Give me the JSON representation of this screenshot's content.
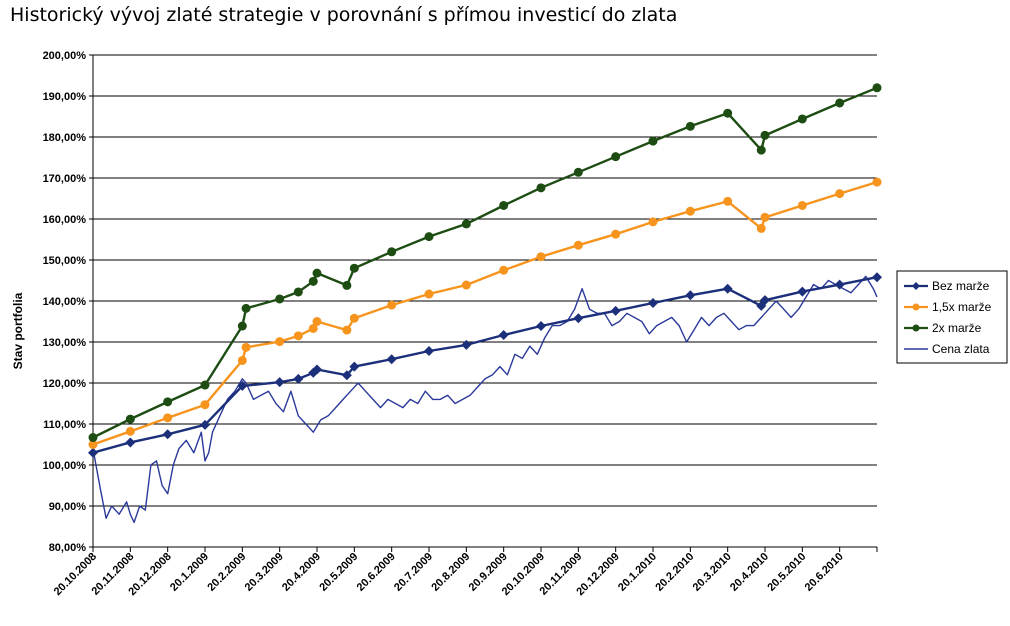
{
  "chart_data": {
    "type": "line",
    "title": "Historický vývoj zlaté strategie v porovnání s přímou investicí do zlata",
    "ylabel": "Stav portfolia",
    "xlabel": "",
    "ylim": [
      80,
      200
    ],
    "yticks": [
      "80,00%",
      "90,00%",
      "100,00%",
      "110,00%",
      "120,00%",
      "130,00%",
      "140,00%",
      "150,00%",
      "160,00%",
      "170,00%",
      "180,00%",
      "190,00%",
      "200,00%"
    ],
    "xticks": [
      "20.10.2008",
      "20.11.2008",
      "20.12.2008",
      "20.1.2009",
      "20.2.2009",
      "20.3.2009",
      "20.4.2009",
      "20.5.2009",
      "20.6.2009",
      "20.7.2009",
      "20.8.2009",
      "20.9.2009",
      "20.10.2009",
      "20.11.2009",
      "20.12.2009",
      "20.1.2010",
      "20.2.2010",
      "20.3.2010",
      "20.4.2010",
      "20.5.2010",
      "20.6.2010"
    ],
    "x_range": [
      0,
      21
    ],
    "grid": true,
    "legend_position": "right",
    "series": [
      {
        "name": "Bez marže",
        "color": "#1c2f7a",
        "marker": "diamond",
        "x": [
          0,
          1,
          2,
          3,
          4,
          5,
          5.5,
          5.9,
          6,
          6.8,
          7,
          8,
          9,
          10,
          11,
          12,
          13,
          14,
          15,
          16,
          17,
          17.9,
          18,
          19,
          20,
          21
        ],
        "y": [
          103,
          105.5,
          107.5,
          109.8,
          119.3,
          120.2,
          121,
          122.5,
          123.3,
          121.9,
          124,
          125.8,
          127.8,
          129.3,
          131.7,
          133.9,
          135.8,
          137.6,
          139.5,
          141.4,
          143,
          138.8,
          140.2,
          142.3,
          144,
          145.8
        ]
      },
      {
        "name": "1,5x marže",
        "color": "#f7941d",
        "marker": "circle",
        "x": [
          0,
          1,
          2,
          3,
          4,
          4.1,
          5,
          5.5,
          5.9,
          6,
          6.8,
          7,
          8,
          9,
          10,
          11,
          12,
          13,
          14,
          15,
          16,
          17,
          17.9,
          18,
          19,
          20,
          21
        ],
        "y": [
          105,
          108.2,
          111.5,
          114.7,
          125.5,
          128.7,
          130.1,
          131.5,
          133.3,
          135,
          132.9,
          135.8,
          139,
          141.7,
          143.9,
          147.5,
          150.8,
          153.6,
          156.3,
          159.3,
          161.9,
          164.3,
          157.7,
          160.4,
          163.3,
          166.2,
          169
        ]
      },
      {
        "name": "2x marže",
        "color": "#1d4d13",
        "marker": "circle",
        "x": [
          0,
          1,
          2,
          3,
          4,
          4.1,
          5,
          5.5,
          5.9,
          6,
          6.8,
          7,
          8,
          9,
          10,
          11,
          12,
          13,
          14,
          15,
          16,
          17,
          17.9,
          18,
          19,
          20,
          21
        ],
        "y": [
          106.7,
          111.2,
          115.4,
          119.5,
          133.9,
          138.2,
          140.5,
          142.2,
          144.8,
          146.8,
          143.8,
          148,
          152,
          155.7,
          158.8,
          163.3,
          167.6,
          171.4,
          175.2,
          179,
          182.6,
          185.8,
          176.8,
          180.4,
          184.4,
          188.3,
          192
        ]
      },
      {
        "name": "Cena zlata",
        "color": "#2b3a9a",
        "marker": "none",
        "x": [
          0,
          0.1,
          0.2,
          0.35,
          0.5,
          0.7,
          0.9,
          1.0,
          1.1,
          1.25,
          1.4,
          1.55,
          1.7,
          1.85,
          2.0,
          2.15,
          2.3,
          2.5,
          2.7,
          2.9,
          3.0,
          3.1,
          3.2,
          3.4,
          3.6,
          3.8,
          4.0,
          4.1,
          4.3,
          4.5,
          4.7,
          4.9,
          5.1,
          5.3,
          5.5,
          5.7,
          5.9,
          6.1,
          6.3,
          6.5,
          6.7,
          6.9,
          7.1,
          7.3,
          7.5,
          7.7,
          7.9,
          8.1,
          8.3,
          8.5,
          8.7,
          8.9,
          9.1,
          9.3,
          9.5,
          9.7,
          9.9,
          10.1,
          10.3,
          10.5,
          10.7,
          10.9,
          11.1,
          11.3,
          11.5,
          11.7,
          11.9,
          12.1,
          12.3,
          12.5,
          12.7,
          12.9,
          13.1,
          13.3,
          13.5,
          13.7,
          13.9,
          14.1,
          14.3,
          14.5,
          14.7,
          14.9,
          15.1,
          15.3,
          15.5,
          15.7,
          15.9,
          16.1,
          16.3,
          16.5,
          16.7,
          16.9,
          17.1,
          17.3,
          17.5,
          17.7,
          17.9,
          18.1,
          18.3,
          18.5,
          18.7,
          18.9,
          19.1,
          19.3,
          19.5,
          19.7,
          19.9,
          20.1,
          20.3,
          20.5,
          20.7,
          20.9,
          21
        ],
        "y": [
          104,
          99,
          94,
          87,
          90,
          88,
          91,
          88,
          86,
          90,
          89,
          100,
          101,
          95,
          93,
          100,
          104,
          106,
          103,
          108,
          101,
          103,
          108,
          112,
          116,
          118,
          121,
          120,
          116,
          117,
          118,
          115,
          113,
          118,
          112,
          110,
          108,
          111,
          112,
          114,
          116,
          118,
          120,
          118,
          116,
          114,
          116,
          115,
          114,
          116,
          115,
          118,
          116,
          116,
          117,
          115,
          116,
          117,
          119,
          121,
          122,
          124,
          122,
          127,
          126,
          129,
          127,
          131,
          134,
          134,
          135,
          138,
          143,
          138,
          137,
          137,
          134,
          135,
          137,
          136,
          135,
          132,
          134,
          135,
          136,
          134,
          130,
          133,
          136,
          134,
          136,
          137,
          135,
          133,
          134,
          134,
          136,
          138,
          140,
          138,
          136,
          138,
          141,
          144,
          143,
          145,
          144,
          143,
          142,
          144,
          146,
          143,
          141
        ]
      }
    ]
  }
}
